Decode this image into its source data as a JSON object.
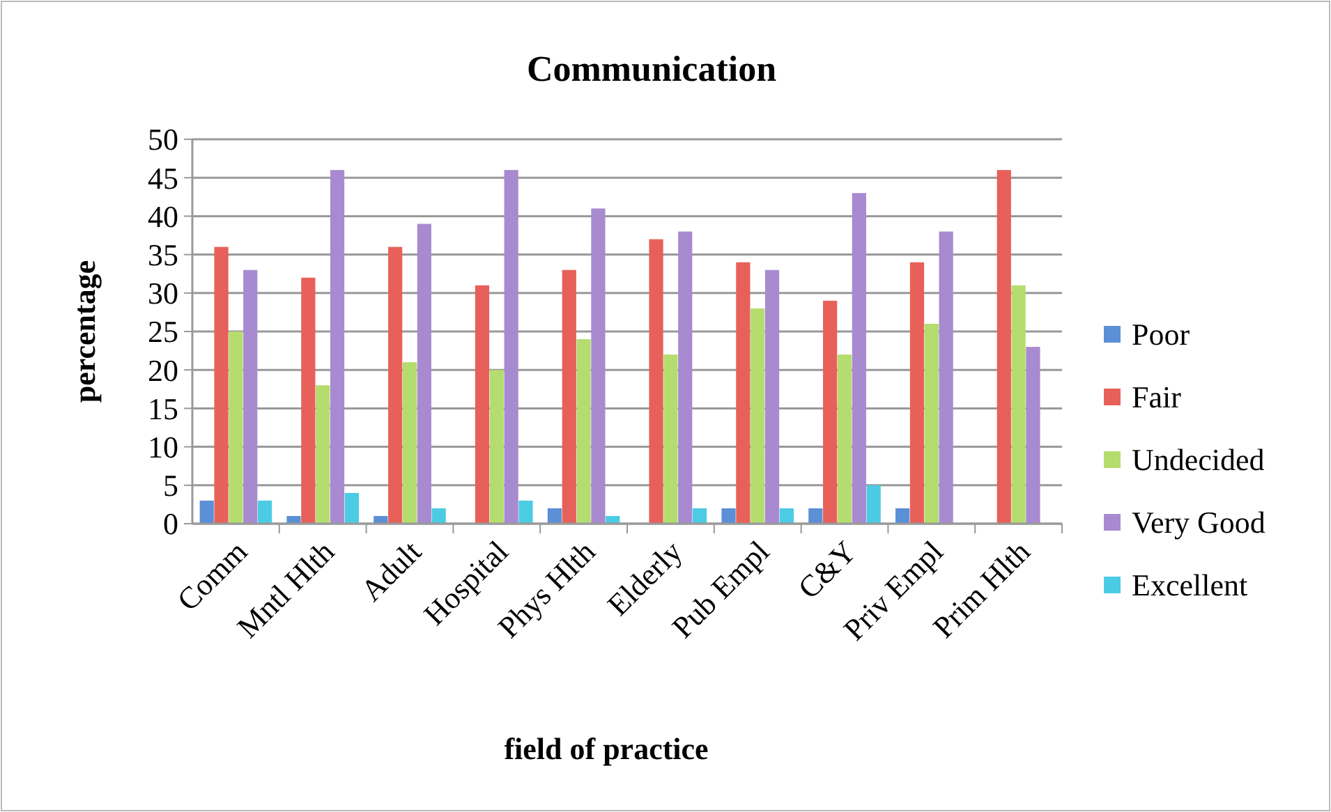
{
  "chart_data": {
    "type": "bar",
    "title": "Communication",
    "xlabel": "field of practice",
    "ylabel": "percentage",
    "categories": [
      "Comm",
      "Mntl Hlth",
      "Adult",
      "Hospital",
      "Phys Hlth",
      "Elderly",
      "Pub Empl",
      "C&Y",
      "Priv Empl",
      "Prim Hlth"
    ],
    "series": [
      {
        "name": "Poor",
        "color": "#5b8fd6",
        "values": [
          3,
          1,
          1,
          0,
          2,
          0,
          2,
          2,
          2,
          0
        ]
      },
      {
        "name": "Fair",
        "color": "#e8605a",
        "values": [
          36,
          32,
          36,
          31,
          33,
          37,
          34,
          29,
          34,
          46
        ]
      },
      {
        "name": "Undecided",
        "color": "#b5dc6e",
        "values": [
          25,
          18,
          21,
          20,
          24,
          22,
          28,
          22,
          26,
          31
        ]
      },
      {
        "name": "Very Good",
        "color": "#a88ad0",
        "values": [
          33,
          46,
          39,
          46,
          41,
          38,
          33,
          43,
          38,
          23
        ]
      },
      {
        "name": "Excellent",
        "color": "#4ccbe4",
        "values": [
          3,
          4,
          2,
          3,
          1,
          2,
          2,
          5,
          0,
          0
        ]
      }
    ],
    "ylim": [
      0,
      50
    ],
    "yticks": [
      0,
      5,
      10,
      15,
      20,
      25,
      30,
      35,
      40,
      45,
      50
    ],
    "grid": "y",
    "legend": "right"
  }
}
